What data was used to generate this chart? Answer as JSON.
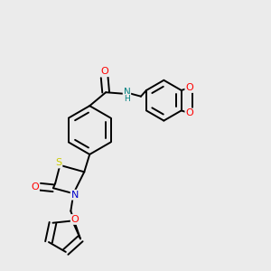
{
  "bg_color": "#ebebeb",
  "atom_colors": {
    "C": "#000000",
    "N": "#0000cc",
    "N_amide": "#008080",
    "O": "#ff0000",
    "S": "#cccc00"
  },
  "bond_lw": 1.4,
  "dbo": 0.013
}
